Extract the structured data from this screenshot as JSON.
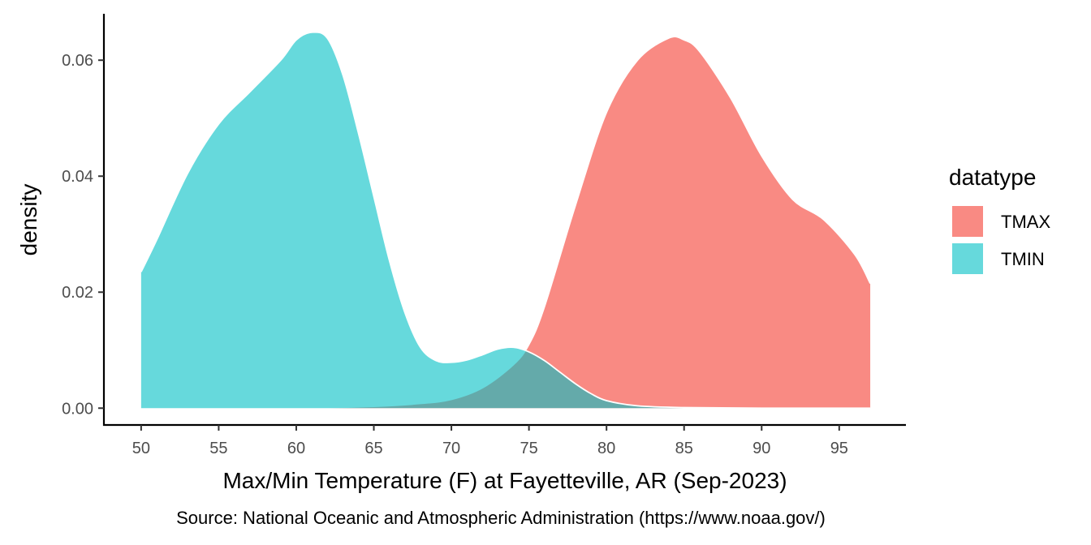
{
  "chart_data": {
    "type": "area",
    "subtype": "density",
    "xlabel": "Max/Min Temperature (F) at Fayetteville, AR (Sep-2023)",
    "ylabel": "density",
    "caption": "Source: National Oceanic and Atmospheric Administration (https://www.noaa.gov/)",
    "xlim": [
      47.6,
      99.3
    ],
    "ylim": [
      -0.0029,
      0.068
    ],
    "x_ticks": [
      50,
      55,
      60,
      65,
      70,
      75,
      80,
      85,
      90,
      95
    ],
    "y_ticks": [
      0.0,
      0.02,
      0.04,
      0.06
    ],
    "y_tick_labels": [
      "0.00",
      "0.02",
      "0.04",
      "0.06"
    ],
    "grid": false,
    "legend": {
      "title": "datatype",
      "position": "right"
    },
    "series": [
      {
        "name": "TMAX",
        "color": "#F8766D",
        "opacity": 0.85,
        "x": [
          50,
          60,
          65,
          68,
          70,
          72,
          74,
          75,
          76,
          78,
          80,
          82,
          84,
          85,
          86,
          88,
          90,
          92,
          94,
          96,
          97
        ],
        "y": [
          0.0,
          0.0,
          0.0003,
          0.0008,
          0.0015,
          0.0035,
          0.0075,
          0.011,
          0.0175,
          0.035,
          0.051,
          0.06,
          0.0638,
          0.0635,
          0.0615,
          0.0535,
          0.0435,
          0.036,
          0.0325,
          0.0265,
          0.0215
        ]
      },
      {
        "name": "TMIN",
        "color": "#00BFC4",
        "opacity": 0.6,
        "x": [
          50,
          51,
          53,
          55,
          57,
          59,
          60,
          61,
          62,
          63,
          64,
          65,
          66,
          67,
          68,
          69,
          70,
          71,
          72,
          73,
          74,
          75,
          76,
          77,
          78,
          79,
          80,
          82,
          85,
          90,
          97
        ],
        "y": [
          0.0235,
          0.029,
          0.0405,
          0.049,
          0.0545,
          0.06,
          0.0635,
          0.0648,
          0.0638,
          0.0575,
          0.0475,
          0.0365,
          0.0255,
          0.0165,
          0.0105,
          0.0082,
          0.0079,
          0.0083,
          0.0092,
          0.0102,
          0.0105,
          0.0097,
          0.0082,
          0.0062,
          0.0042,
          0.0025,
          0.0013,
          0.0004,
          0.0001,
          0.0,
          0.0
        ]
      }
    ]
  }
}
